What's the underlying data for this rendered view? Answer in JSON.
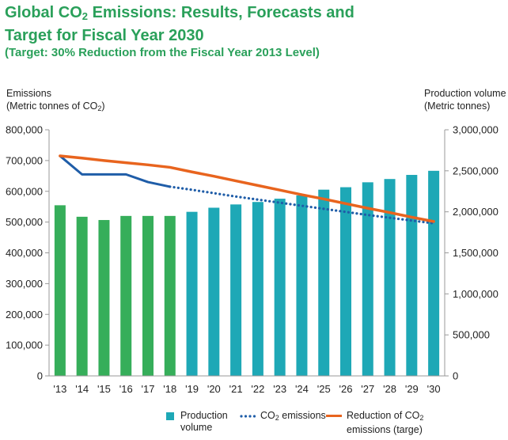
{
  "title": {
    "line1_pre": "Global CO",
    "line1_sub": "2",
    "line1_post": " Emissions: Results, Forecasts and",
    "line2": "Target for Fiscal Year 2030",
    "subtitle": "(Target: 30% Reduction from the Fiscal Year 2013 Level)"
  },
  "left_axis_title": {
    "line1": "Emissions",
    "line2_pre": "(Metric tonnes of CO",
    "line2_sub": "2",
    "line2_post": ")"
  },
  "right_axis_title": {
    "line1": "Production volume",
    "line2": "(Metric tonnes)"
  },
  "legend": {
    "production_line1": "Production",
    "production_line2": "volume",
    "co2_pre": "CO",
    "co2_sub": "2",
    "co2_post": " emissions",
    "reduction_line1_pre": "Reduction of CO",
    "reduction_line1_sub": "2",
    "reduction_line2": "emissions (targe)"
  },
  "colors": {
    "title": "#2aa05a",
    "bar_result": "#36ae5a",
    "bar_forecast": "#1ea8b6",
    "co2_line": "#1f5da8",
    "target_line": "#e8641e",
    "axis": "#999999"
  },
  "chart_data": {
    "type": "bar",
    "categories": [
      "'13",
      "'14",
      "'15",
      "'16",
      "'17",
      "'18",
      "'19",
      "'20",
      "'21",
      "'22",
      "'23",
      "'24",
      "'25",
      "'26",
      "'27",
      "'28",
      "'29",
      "'30"
    ],
    "left_axis": {
      "range": [
        0,
        800000
      ],
      "ticks": [
        "0",
        "100,000",
        "200,000",
        "300,000",
        "400,000",
        "500,000",
        "600,000",
        "700,000",
        "800,000"
      ]
    },
    "right_axis": {
      "range": [
        0,
        3000000
      ],
      "ticks": [
        "0",
        "500,000",
        "1,000,000",
        "1,500,000",
        "2,000,000",
        "2,500,000",
        "3,000,000"
      ]
    },
    "series": [
      {
        "name": "Production volume",
        "kind": "bar",
        "axis": "right",
        "values": [
          2080000,
          1940000,
          1900000,
          1950000,
          1950000,
          1950000,
          2000000,
          2050000,
          2090000,
          2120000,
          2160000,
          2200000,
          2270000,
          2300000,
          2360000,
          2400000,
          2450000,
          2500000
        ],
        "result_years": 6
      },
      {
        "name": "CO2 emissions",
        "kind": "line",
        "axis": "left",
        "values": [
          715000,
          655000,
          655000,
          655000,
          630000,
          615000,
          605000,
          594000,
          583000,
          573000,
          563000,
          553000,
          543000,
          533000,
          523000,
          514000,
          505000,
          496000
        ],
        "solid_until_index": 5
      },
      {
        "name": "Reduction of CO2 emissions (targe)",
        "kind": "line",
        "axis": "left",
        "values": [
          715000,
          708000,
          700000,
          693000,
          686000,
          678000,
          663000,
          649000,
          634000,
          619000,
          604000,
          589000,
          575000,
          560000,
          545000,
          531000,
          516000,
          502000
        ]
      }
    ]
  }
}
